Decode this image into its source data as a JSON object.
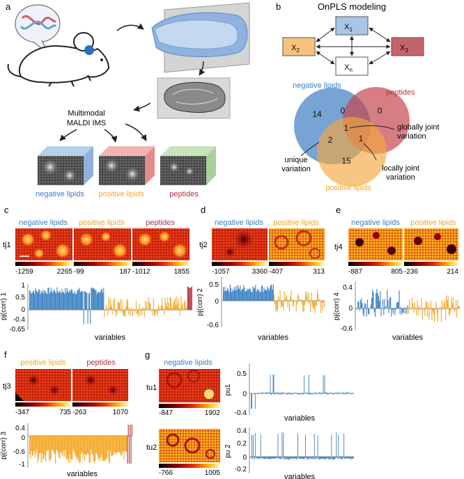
{
  "colors": {
    "neg": "#3a7fc1",
    "pos": "#f5a623",
    "pep": "#b5323c",
    "x1": "#a9c6e8",
    "x2": "#f7c27c",
    "x3": "#c4646a",
    "venn_neg": "#4a86c6",
    "venn_pep": "#c5474f",
    "venn_pos": "#f4a741"
  },
  "panel_a": {
    "letter": "a",
    "modality_text_1": "Multimodal",
    "modality_text_2": "MALDI IMS",
    "cube_labels": [
      "negative lipids",
      "positive lipids",
      "peptides"
    ]
  },
  "panel_b": {
    "letter": "b",
    "title": "OnPLS modeling",
    "blocks": {
      "x1": "X",
      "x1_sub": "1",
      "x2": "X",
      "x2_sub": "2",
      "x3": "X",
      "x3_sub": "3",
      "xn": "X",
      "xn_sub": "n"
    },
    "venn_labels": {
      "neg": "negative lipids",
      "pep": "peptides",
      "pos": "positive lipids"
    },
    "venn_counts": {
      "neg_only": "14",
      "neg_pep": "0",
      "pep_only": "0",
      "center": "1",
      "neg_pos": "2",
      "pos_pep": "1",
      "pos_only": "15"
    },
    "annotations": {
      "global_1": "globally joint",
      "global_2": "variation",
      "unique_1": "unique",
      "unique_2": "variation",
      "local_1": "locally joint",
      "local_2": "variation"
    }
  },
  "panel_c": {
    "letter": "c",
    "tj": "tj1",
    "img_labels": [
      "negative lipids",
      "positive lipids",
      "peptides"
    ],
    "scales": [
      [
        "-1259",
        "2265"
      ],
      [
        "-99",
        "187"
      ],
      [
        "-1012",
        "1855"
      ]
    ],
    "ylabel": "pj(corr) 1",
    "xlabel": "variables",
    "yticks": [
      "1",
      "0.5",
      "0",
      "-0.4",
      "-0.65"
    ]
  },
  "panel_d": {
    "letter": "d",
    "tj": "tj2",
    "img_labels": [
      "negative lipids",
      "positive lipids"
    ],
    "scales": [
      [
        "-1057",
        "3360"
      ],
      [
        "-407",
        "313"
      ]
    ],
    "ylabel": "pj(corr) 2",
    "xlabel": "variables",
    "yticks": [
      "0.5",
      "0",
      "-0.6"
    ]
  },
  "panel_e": {
    "letter": "e",
    "tj": "tj4",
    "img_labels": [
      "negative lipids",
      "positive lipids"
    ],
    "scales": [
      [
        "-887",
        "805"
      ],
      [
        "-236",
        "214"
      ]
    ],
    "ylabel": "pj(corr) 4",
    "xlabel": "variables",
    "yticks": [
      "0.4",
      "0",
      "-0.6"
    ]
  },
  "panel_f": {
    "letter": "f",
    "tj": "tj3",
    "img_labels": [
      "positive lipids",
      "peptides"
    ],
    "scales": [
      [
        "-347",
        "735"
      ],
      [
        "-263",
        "1070"
      ]
    ],
    "ylabel": "pj(corr) 3",
    "xlabel": "variables",
    "yticks": [
      "0.4",
      "0",
      "-0.6",
      "-1"
    ]
  },
  "panel_g": {
    "letter": "g",
    "title": "negative lipids",
    "tu1": "tu1",
    "tu2": "tu2",
    "scales": [
      [
        "-847",
        "1902"
      ],
      [
        "-766",
        "1005"
      ]
    ],
    "plot1": {
      "ylabel": "pu1",
      "xlabel": "variables",
      "yticks": [
        "0.5",
        "0",
        "-0.4"
      ]
    },
    "plot2": {
      "ylabel": "pu 2",
      "xlabel": "variables",
      "yticks": [
        "0.4",
        "0.2",
        "0",
        "-0.2"
      ]
    }
  }
}
